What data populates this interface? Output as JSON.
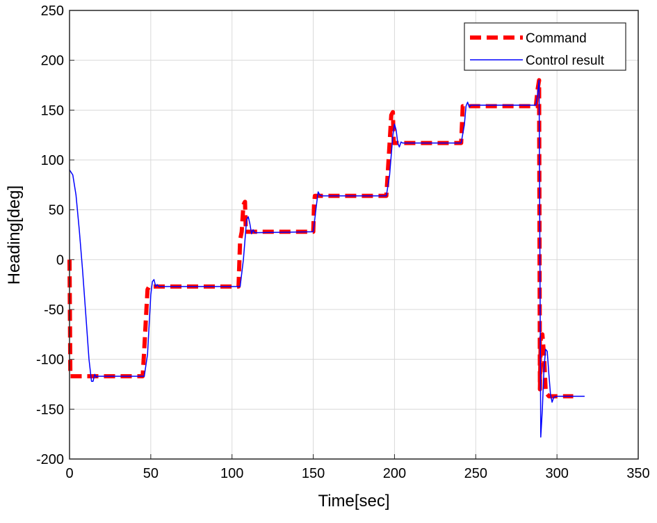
{
  "chart_data": {
    "type": "line",
    "title": "",
    "xlabel": "Time[sec]",
    "ylabel": "Heading[deg]",
    "xlim": [
      0,
      350
    ],
    "ylim": [
      -200,
      250
    ],
    "xticks": [
      0,
      50,
      100,
      150,
      200,
      250,
      300,
      350
    ],
    "yticks": [
      -200,
      -150,
      -100,
      -50,
      0,
      50,
      100,
      150,
      200,
      250
    ],
    "grid": true,
    "legend_position": "top-right",
    "series": [
      {
        "name": "Command",
        "color": "#ff0000",
        "style": "dashed",
        "points": [
          [
            0,
            0
          ],
          [
            0.5,
            -117
          ],
          [
            45,
            -117
          ],
          [
            46,
            -90
          ],
          [
            47,
            -60
          ],
          [
            48,
            -30
          ],
          [
            49,
            -27
          ],
          [
            104,
            -27
          ],
          [
            105,
            20
          ],
          [
            106,
            28
          ],
          [
            107,
            55
          ],
          [
            108,
            58
          ],
          [
            108.5,
            28
          ],
          [
            150,
            28
          ],
          [
            150.5,
            55
          ],
          [
            151,
            64
          ],
          [
            195,
            64
          ],
          [
            197,
            117
          ],
          [
            198,
            145
          ],
          [
            199,
            148
          ],
          [
            199.5,
            117
          ],
          [
            241,
            117
          ],
          [
            242,
            154
          ],
          [
            287,
            154
          ],
          [
            288,
            170
          ],
          [
            289,
            180
          ],
          [
            289.5,
            -130
          ],
          [
            290,
            -80
          ],
          [
            291,
            -75
          ],
          [
            292,
            -95
          ],
          [
            293,
            -130
          ],
          [
            294,
            -135
          ],
          [
            295,
            -137
          ],
          [
            310,
            -137
          ]
        ]
      },
      {
        "name": "Control result",
        "color": "#0000ff",
        "style": "solid",
        "points": [
          [
            0,
            90
          ],
          [
            2,
            85
          ],
          [
            4,
            65
          ],
          [
            6,
            30
          ],
          [
            8,
            -10
          ],
          [
            10,
            -55
          ],
          [
            12,
            -100
          ],
          [
            13.5,
            -122
          ],
          [
            14.5,
            -122
          ],
          [
            15.5,
            -115
          ],
          [
            16.5,
            -118
          ],
          [
            17,
            -117
          ],
          [
            46,
            -117
          ],
          [
            48,
            -95
          ],
          [
            50,
            -35
          ],
          [
            51,
            -22
          ],
          [
            52,
            -20
          ],
          [
            53,
            -27
          ],
          [
            54,
            -25
          ],
          [
            55,
            -27
          ],
          [
            105,
            -27
          ],
          [
            107,
            0
          ],
          [
            109,
            40
          ],
          [
            110,
            43
          ],
          [
            111,
            36
          ],
          [
            112,
            26
          ],
          [
            113,
            30
          ],
          [
            114,
            27
          ],
          [
            150,
            28
          ],
          [
            152,
            55
          ],
          [
            153,
            68
          ],
          [
            154,
            65
          ],
          [
            155,
            64
          ],
          [
            195,
            64
          ],
          [
            197,
            85
          ],
          [
            199,
            125
          ],
          [
            200,
            136
          ],
          [
            201,
            130
          ],
          [
            202,
            117
          ],
          [
            203,
            113
          ],
          [
            204,
            118
          ],
          [
            205,
            117
          ],
          [
            241,
            117
          ],
          [
            243,
            135
          ],
          [
            244,
            154
          ],
          [
            245,
            158
          ],
          [
            246,
            153
          ],
          [
            247,
            155
          ],
          [
            287,
            155
          ],
          [
            288,
            165
          ],
          [
            289,
            180
          ],
          [
            289.5,
            0
          ],
          [
            290,
            -178
          ],
          [
            291,
            -150
          ],
          [
            292,
            -110
          ],
          [
            293,
            -90
          ],
          [
            294,
            -92
          ],
          [
            295,
            -115
          ],
          [
            296,
            -135
          ],
          [
            297,
            -143
          ],
          [
            298,
            -138
          ],
          [
            300,
            -137
          ],
          [
            317,
            -137
          ]
        ]
      }
    ]
  }
}
